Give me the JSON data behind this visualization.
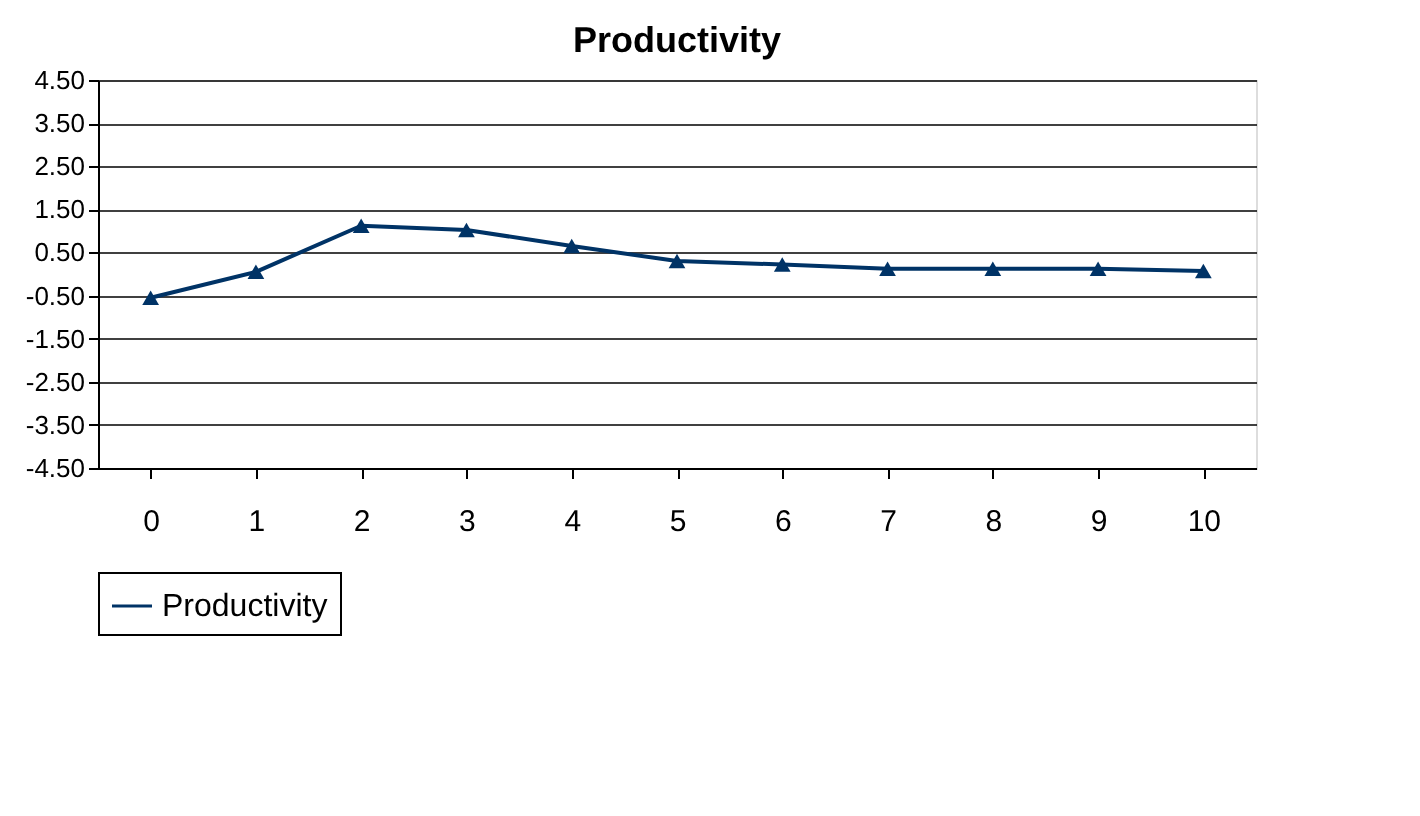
{
  "chart_data": {
    "type": "line",
    "title": "Productivity",
    "categories": [
      "0",
      "1",
      "2",
      "3",
      "4",
      "5",
      "6",
      "7",
      "8",
      "9",
      "10"
    ],
    "series": [
      {
        "name": "Productivity",
        "color": "#003366",
        "values": [
          -0.55,
          0.05,
          1.12,
          1.02,
          0.65,
          0.3,
          0.22,
          0.12,
          0.12,
          0.12,
          0.07
        ]
      }
    ],
    "ylim": [
      -4.5,
      4.5
    ],
    "yticks": [
      {
        "value": -4.5,
        "label": "-4.50"
      },
      {
        "value": -3.5,
        "label": "-3.50"
      },
      {
        "value": -2.5,
        "label": "-2.50"
      },
      {
        "value": -1.5,
        "label": "-1.50"
      },
      {
        "value": -0.5,
        "label": "-0.50"
      },
      {
        "value": 0.5,
        "label": "0.50"
      },
      {
        "value": 1.5,
        "label": "1.50"
      },
      {
        "value": 2.5,
        "label": "2.50"
      },
      {
        "value": 3.5,
        "label": "3.50"
      },
      {
        "value": 4.5,
        "label": "4.50"
      }
    ],
    "grid": "y",
    "legend": "bottom",
    "marker": "triangle",
    "line_style": "solid"
  }
}
